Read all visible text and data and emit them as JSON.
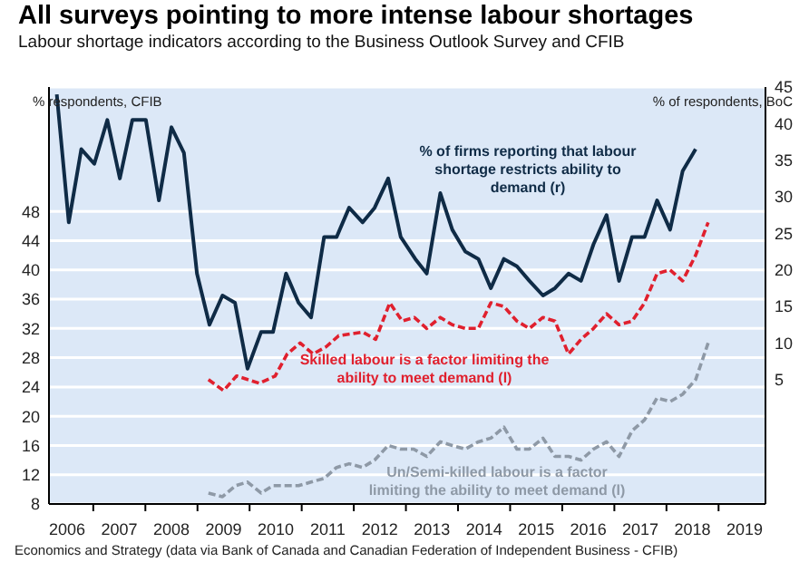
{
  "chart_data": {
    "type": "line",
    "title": "All surveys pointing to more intense labour shortages",
    "subtitle": "Labour shortage indicators according to the Business Outlook Survey and CFIB",
    "ylabel": "% respondents, CFIB",
    "y2label": "% of respondents, BoC",
    "annotations": [
      "Economics and Strategy (data via Bank of Canada and Canadian Federation of Independent Business - CFIB)"
    ],
    "xlim": [
      2006.15,
      2019.9
    ],
    "xticks": [
      {
        "value": 2007,
        "label": null
      },
      {
        "value": 2008,
        "label": null
      },
      {
        "value": 2009,
        "label": null
      },
      {
        "value": 2010,
        "label": null
      },
      {
        "value": 2011,
        "label": null
      },
      {
        "value": 2012,
        "label": null
      },
      {
        "value": 2013,
        "label": null
      },
      {
        "value": 2014,
        "label": null
      },
      {
        "value": 2015,
        "label": null
      },
      {
        "value": 2016,
        "label": null
      },
      {
        "value": 2017,
        "label": null
      },
      {
        "value": 2018,
        "label": null
      },
      {
        "value": 2019,
        "label": null
      },
      {
        "value": 2006.5,
        "label": "2006"
      },
      {
        "value": 2007.5,
        "label": "2007"
      },
      {
        "value": 2008.5,
        "label": "2008"
      },
      {
        "value": 2009.5,
        "label": "2009"
      },
      {
        "value": 2010.5,
        "label": "2010"
      },
      {
        "value": 2011.5,
        "label": "2011"
      },
      {
        "value": 2012.5,
        "label": "2012"
      },
      {
        "value": 2013.5,
        "label": "2013"
      },
      {
        "value": 2014.5,
        "label": "2014"
      },
      {
        "value": 2015.5,
        "label": "2015"
      },
      {
        "value": 2016.5,
        "label": "2016"
      },
      {
        "value": 2017.5,
        "label": "2017"
      },
      {
        "value": 2018.5,
        "label": "2018"
      },
      {
        "value": 2019.5,
        "label": "2019"
      }
    ],
    "ylim": [
      8,
      65
    ],
    "yticks": [
      8,
      12,
      16,
      20,
      24,
      28,
      32,
      36,
      40,
      44,
      48
    ],
    "y2lim": [
      -12,
      45
    ],
    "y2ticks": [
      5,
      10,
      15,
      20,
      25,
      30,
      35,
      40,
      45
    ],
    "grid": "y",
    "marker": "none",
    "series": [
      {
        "name": "% of firms reporting that labour shortage restricts ability to demand (r)",
        "color": "#0f2b46",
        "axis": "y2",
        "line_style": "solid",
        "x": [
          2006.3,
          2006.53,
          2006.77,
          2007.02,
          2007.27,
          2007.51,
          2007.75,
          2008.01,
          2008.26,
          2008.5,
          2008.74,
          2008.99,
          2009.23,
          2009.48,
          2009.72,
          2009.96,
          2010.22,
          2010.45,
          2010.7,
          2010.94,
          2011.18,
          2011.43,
          2011.67,
          2011.91,
          2012.17,
          2012.4,
          2012.66,
          2012.9,
          2013.18,
          2013.4,
          2013.66,
          2013.89,
          2014.14,
          2014.39,
          2014.63,
          2014.88,
          2015.13,
          2015.37,
          2015.63,
          2015.86,
          2016.12,
          2016.36,
          2016.6,
          2016.85,
          2017.09,
          2017.34,
          2017.58,
          2017.82,
          2018.07,
          2018.31,
          2018.56
        ],
        "values": [
          44,
          26.5,
          36.5,
          34.5,
          40.5,
          32.5,
          40.5,
          40.5,
          29.5,
          39.5,
          36,
          19.5,
          12.5,
          16.5,
          15.5,
          6.5,
          11.5,
          11.5,
          19.5,
          15.5,
          13.5,
          24.5,
          24.5,
          28.5,
          26.5,
          28.5,
          32.5,
          24.5,
          21.5,
          19.5,
          30.5,
          25.5,
          22.5,
          21.5,
          17.5,
          21.5,
          20.5,
          18.5,
          16.5,
          17.5,
          19.5,
          18.5,
          23.5,
          27.5,
          18.5,
          24.5,
          24.5,
          29.5,
          25.5,
          33.5,
          36.5
        ]
      },
      {
        "name": "Skilled labour is a factor limiting the ability to meet demand (l)",
        "color": "#e0202e",
        "line_style": "dashed",
        "x": [
          2009.21,
          2009.5,
          2009.75,
          2010.19,
          2010.49,
          2010.72,
          2010.97,
          2011.22,
          2011.47,
          2011.71,
          2012.17,
          2012.42,
          2012.69,
          2012.93,
          2013.16,
          2013.4,
          2013.66,
          2013.89,
          2014.14,
          2014.39,
          2014.63,
          2014.88,
          2015.13,
          2015.37,
          2015.63,
          2015.86,
          2016.12,
          2016.36,
          2016.6,
          2016.85,
          2017.09,
          2017.34,
          2017.58,
          2017.82,
          2018.07,
          2018.31,
          2018.56,
          2018.8
        ],
        "values": [
          25,
          23.5,
          25.5,
          24.5,
          25.5,
          28.5,
          30,
          28.5,
          29.5,
          31,
          31.5,
          30.5,
          35.5,
          33,
          33.5,
          32,
          33.5,
          32.5,
          32,
          32,
          35.5,
          35,
          33,
          32,
          33.5,
          33,
          28.5,
          30.5,
          32,
          34,
          32.5,
          33,
          35.5,
          39.5,
          40,
          38.5,
          42,
          46.5
        ]
      },
      {
        "name": "Un/Semi-killed labour is a factor limiting the ability to meet demand (l)",
        "color": "#8e99a6",
        "line_style": "dashed",
        "x": [
          2009.21,
          2009.48,
          2009.73,
          2009.96,
          2010.22,
          2010.45,
          2010.7,
          2010.94,
          2011.18,
          2011.43,
          2011.67,
          2011.91,
          2012.17,
          2012.4,
          2012.66,
          2012.9,
          2013.15,
          2013.4,
          2013.66,
          2013.89,
          2014.14,
          2014.39,
          2014.63,
          2014.88,
          2015.13,
          2015.37,
          2015.63,
          2015.86,
          2016.12,
          2016.36,
          2016.6,
          2016.85,
          2017.09,
          2017.34,
          2017.58,
          2017.82,
          2018.07,
          2018.31,
          2018.56,
          2018.8
        ],
        "values": [
          9.5,
          9,
          10.5,
          11,
          9.5,
          10.5,
          10.5,
          10.5,
          11,
          11.5,
          13,
          13.5,
          13,
          14,
          16,
          15.5,
          15.5,
          14.5,
          16.5,
          16,
          15.5,
          16.5,
          17,
          18.5,
          15.5,
          15.5,
          17,
          14.5,
          14.5,
          14,
          15.5,
          16.5,
          14.5,
          18,
          19.5,
          22.5,
          22,
          23,
          25,
          30
        ]
      }
    ]
  }
}
